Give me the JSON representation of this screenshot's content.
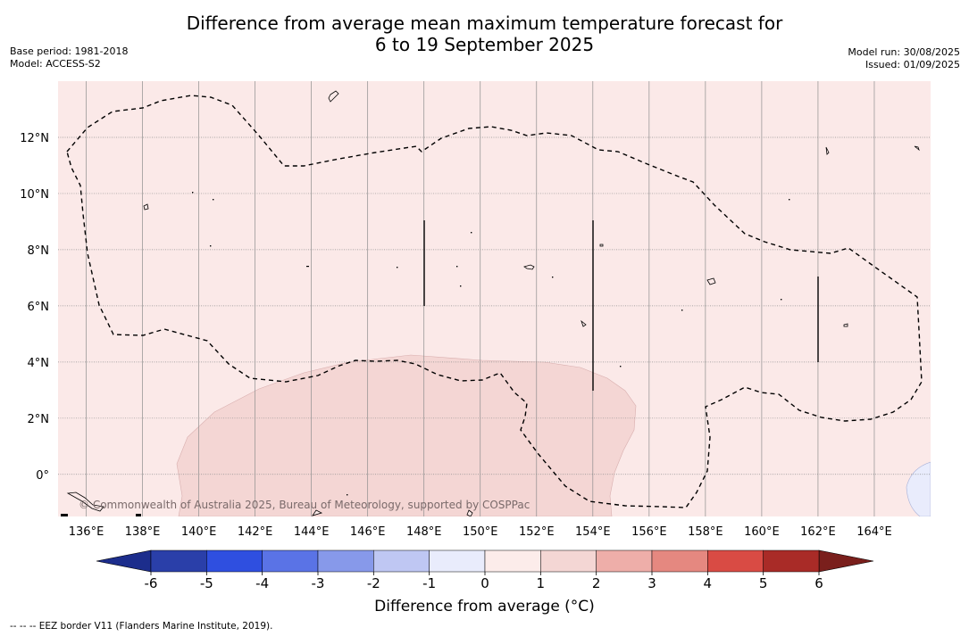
{
  "title": {
    "line1": "Difference from average mean maximum temperature forecast for",
    "line2": "6 to 19 September 2025"
  },
  "meta_left": {
    "base_period": "Base period: 1981-2018",
    "model": "Model: ACCESS-S2"
  },
  "meta_right": {
    "model_run": "Model run: 30/08/2025",
    "issued": "Issued: 01/09/2025"
  },
  "map": {
    "extent": {
      "lon_min": 135,
      "lon_max": 166,
      "lat_min": -1.5,
      "lat_max": 14
    },
    "background_category": "0 to 1",
    "background_color": "#fbe9e8",
    "warm_patch_category": "1 to 2",
    "warm_patch_color": "#f4d6d4",
    "cool_patch_category": "-1 to 0",
    "cool_patch_color": "#e9ecfc",
    "lon_ticks": [
      "136°E",
      "138°E",
      "140°E",
      "142°E",
      "144°E",
      "146°E",
      "148°E",
      "150°E",
      "152°E",
      "154°E",
      "156°E",
      "158°E",
      "160°E",
      "162°E",
      "164°E"
    ],
    "lat_ticks": [
      "12°N",
      "10°N",
      "8°N",
      "6°N",
      "4°N",
      "2°N",
      "0°"
    ],
    "copyright": "© Commonwealth of Australia 2025, Bureau of Meteorology, supported by COSPPac",
    "eez_line_style": "dashed"
  },
  "colorbar": {
    "title": "Difference from average (°C)",
    "tick_labels": [
      "-6",
      "-5",
      "-4",
      "-3",
      "-2",
      "-1",
      "0",
      "1",
      "2",
      "3",
      "4",
      "5",
      "6"
    ],
    "colors": [
      "#2a3fa9",
      "#2f4fe0",
      "#5a73e6",
      "#8799ea",
      "#bfc7f3",
      "#e9ecfc",
      "#fcecea",
      "#f4d6d4",
      "#eeaea9",
      "#e58880",
      "#d94b44",
      "#a92b27"
    ],
    "extend_low_color": "#1c2d8c",
    "extend_high_color": "#7a1f1c"
  },
  "footnote": "--  --  -- EEZ border V11 (Flanders Marine Institute, 2019)."
}
